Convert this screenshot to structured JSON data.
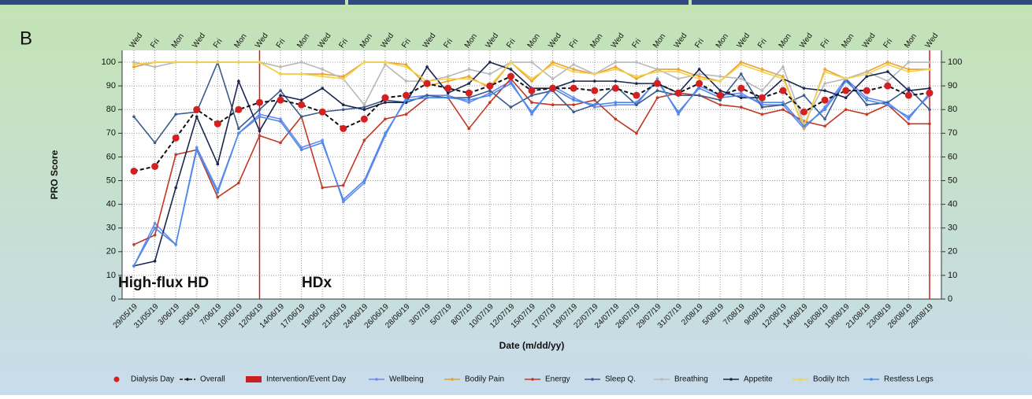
{
  "chart_data": {
    "type": "line",
    "panel_label": "B",
    "ylabel": "PRO Score",
    "xlabel": "Date (m/dd/yy)",
    "categories": [
      "29/05/19",
      "31/05/19",
      "3/06/19",
      "5/06/19",
      "7/06/19",
      "10/06/19",
      "12/06/19",
      "14/06/19",
      "17/06/19",
      "19/06/19",
      "21/06/19",
      "24/06/19",
      "26/06/19",
      "28/06/19",
      "3/07/19",
      "5/07/19",
      "8/07/19",
      "10/07/19",
      "12/07/19",
      "15/07/19",
      "17/07/19",
      "19/07/19",
      "22/07/19",
      "24/07/19",
      "26/07/19",
      "29/07/19",
      "31/07/19",
      "2/08/19",
      "5/08/19",
      "7/08/19",
      "9/08/19",
      "12/08/19",
      "14/08/19",
      "16/08/19",
      "19/08/19",
      "21/08/19",
      "23/08/19",
      "26/08/19",
      "28/08/19"
    ],
    "weekdays": [
      "Wed",
      "Fri",
      "Mon",
      "Wed",
      "Fri",
      "Mon",
      "Wed",
      "Fri",
      "Mon",
      "Wed",
      "Fri",
      "Mon",
      "Wed",
      "Fri",
      "Wed",
      "Fri",
      "Mon",
      "Wed",
      "Fri",
      "Mon",
      "Wed",
      "Fri",
      "Mon",
      "Wed",
      "Fri",
      "Mon",
      "Wed",
      "Fri",
      "Mon",
      "Wed",
      "Fri",
      "Mon",
      "Wed",
      "Fri",
      "Mon",
      "Wed",
      "Fri",
      "Mon",
      "Wed"
    ],
    "ylim": [
      0,
      105
    ],
    "yticks": [
      0,
      10,
      20,
      30,
      40,
      50,
      60,
      70,
      80,
      90,
      100
    ],
    "grid": true,
    "annotations": [
      "High-flux HD",
      "HDx"
    ],
    "markers": {
      "name": "Dialysis Day",
      "color": "#d42020"
    },
    "events": {
      "name": "Intervention/Event Day",
      "color": "#c82020",
      "dates": [
        "12/06/19",
        "28/08/19"
      ]
    },
    "series": [
      {
        "name": "Overall",
        "color": "#111111",
        "dashed": true,
        "values": [
          54,
          56,
          68,
          80,
          74,
          80,
          83,
          84,
          82,
          79,
          72,
          76,
          85,
          86,
          91,
          89,
          87,
          90,
          94,
          88,
          89,
          89,
          88,
          89,
          86,
          91,
          87,
          91,
          86,
          89,
          85,
          88,
          79,
          84,
          88,
          88,
          90,
          86,
          87
        ]
      },
      {
        "name": "Wellbeing",
        "color": "#6a88f0",
        "values": [
          14,
          32,
          23,
          64,
          46,
          70,
          78,
          76,
          64,
          67,
          41,
          49,
          69,
          85,
          86,
          86,
          83,
          87,
          92,
          78,
          90,
          85,
          81,
          82,
          82,
          93,
          78,
          90,
          86,
          87,
          82,
          82,
          72,
          81,
          93,
          85,
          83,
          76,
          87
        ]
      },
      {
        "name": "Bodily Pain",
        "color": "#e8a030",
        "values": [
          98,
          100,
          100,
          100,
          100,
          100,
          100,
          95,
          95,
          95,
          94,
          100,
          100,
          99,
          90,
          92,
          94,
          89,
          100,
          92,
          100,
          97,
          95,
          98,
          93,
          97,
          97,
          94,
          92,
          100,
          97,
          94,
          72,
          97,
          93,
          96,
          100,
          97,
          97
        ]
      },
      {
        "name": "Energy",
        "color": "#c03822",
        "values": [
          23,
          27,
          61,
          63,
          43,
          49,
          69,
          66,
          77,
          47,
          48,
          67,
          76,
          78,
          85,
          85,
          72,
          83,
          93,
          83,
          82,
          82,
          84,
          76,
          70,
          85,
          87,
          86,
          82,
          81,
          78,
          80,
          75,
          73,
          80,
          78,
          82,
          74,
          74
        ]
      },
      {
        "name": "Sleep Q.",
        "color": "#3a5a8c",
        "values": [
          77,
          66,
          78,
          79,
          100,
          72,
          80,
          88,
          77,
          79,
          80,
          81,
          84,
          83,
          86,
          85,
          85,
          88,
          81,
          86,
          88,
          79,
          82,
          90,
          82,
          88,
          86,
          86,
          84,
          95,
          81,
          82,
          86,
          76,
          93,
          82,
          83,
          89,
          80
        ]
      },
      {
        "name": "Breathing",
        "color": "#b8b8b8",
        "values": [
          100,
          98,
          100,
          100,
          100,
          100,
          100,
          98,
          100,
          97,
          93,
          82,
          99,
          92,
          92,
          94,
          97,
          95,
          100,
          100,
          93,
          99,
          95,
          100,
          100,
          97,
          93,
          95,
          94,
          93,
          88,
          98,
          74,
          91,
          93,
          96,
          92,
          100,
          100
        ]
      },
      {
        "name": "Appetite",
        "color": "#1a2550",
        "values": [
          14,
          16,
          47,
          77,
          57,
          92,
          71,
          86,
          84,
          89,
          82,
          80,
          83,
          83,
          98,
          87,
          91,
          100,
          97,
          89,
          89,
          92,
          92,
          92,
          91,
          91,
          87,
          97,
          88,
          85,
          85,
          93,
          89,
          88,
          85,
          94,
          96,
          88,
          89
        ]
      },
      {
        "name": "Bodily Itch",
        "color": "#f2d24a",
        "values": [
          99,
          100,
          100,
          100,
          100,
          100,
          100,
          95,
          95,
          94,
          93,
          100,
          100,
          98,
          92,
          93,
          93,
          90,
          100,
          93,
          99,
          96,
          95,
          97,
          94,
          96,
          96,
          93,
          92,
          99,
          96,
          93,
          73,
          96,
          93,
          95,
          99,
          96,
          97
        ]
      },
      {
        "name": "Restless Legs",
        "color": "#4a8ae8",
        "values": [
          14,
          30,
          23,
          63,
          45,
          70,
          77,
          75,
          63,
          66,
          42,
          50,
          70,
          84,
          85,
          85,
          84,
          86,
          91,
          79,
          89,
          84,
          82,
          83,
          83,
          92,
          79,
          89,
          85,
          86,
          83,
          83,
          73,
          80,
          92,
          84,
          82,
          77,
          86
        ]
      }
    ]
  }
}
